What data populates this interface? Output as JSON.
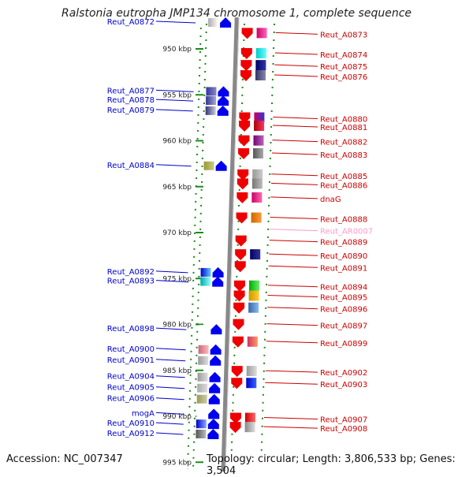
{
  "title": "Ralstonia eutropha JMP134 chromosome 1, complete sequence",
  "footer": {
    "accession": "Accession: NC_007347",
    "summary": "Topology: circular; Length: 3,806,533 bp; Genes: 3,504"
  },
  "colors": {
    "left_label": "#0000cc",
    "right_label": "#cc0000",
    "rna_label": "#ff99cc",
    "axis": "#888888",
    "tick_dots": "#1a8a1a",
    "left_gene": "#0000ee",
    "right_gene": "#ee0000"
  },
  "scale_labels": [
    {
      "text": "950 kbp",
      "kbp": 950
    },
    {
      "text": "955 kbp",
      "kbp": 955
    },
    {
      "text": "960 kbp",
      "kbp": 960
    },
    {
      "text": "965 kbp",
      "kbp": 965
    },
    {
      "text": "970 kbp",
      "kbp": 970
    },
    {
      "text": "975 kbp",
      "kbp": 975
    },
    {
      "text": "980 kbp",
      "kbp": 980
    },
    {
      "text": "985 kbp",
      "kbp": 985
    },
    {
      "text": "990 kbp",
      "kbp": 990
    },
    {
      "text": "995 kbp",
      "kbp": 995
    }
  ],
  "left_genes": [
    {
      "label": "Reut_A0872",
      "kbp": 947.0,
      "swatch": [
        "#aaaaaa",
        "#ffffff"
      ]
    },
    {
      "label": "Reut_A0877",
      "kbp": 954.5,
      "swatch": [
        "#333399",
        "#8888cc"
      ]
    },
    {
      "label": "Reut_A0878",
      "kbp": 955.5,
      "swatch": [
        "#333399",
        "#aaaacc"
      ]
    },
    {
      "label": "Reut_A0879",
      "kbp": 956.6,
      "swatch": [
        "#333377",
        "#ccccdd"
      ]
    },
    {
      "label": "Reut_A0884",
      "kbp": 962.6,
      "swatch": [
        "#999933",
        "#cccc88"
      ]
    },
    {
      "label": "Reut_A0892",
      "kbp": 974.2,
      "swatch": [
        "#0000cc",
        "#66ccff"
      ]
    },
    {
      "label": "Reut_A0893",
      "kbp": 975.2,
      "swatch": [
        "#00aaaa",
        "#99ffff"
      ]
    },
    {
      "label": "Reut_A0898",
      "kbp": 980.4,
      "swatch": [
        "#ffffff",
        "#ffffff"
      ]
    },
    {
      "label": "Reut_A0900",
      "kbp": 982.6,
      "swatch": [
        "#cc6677",
        "#ffbbbb"
      ]
    },
    {
      "label": "Reut_A0901",
      "kbp": 983.8,
      "swatch": [
        "#999999",
        "#dddddd"
      ]
    },
    {
      "label": "Reut_A0904",
      "kbp": 985.6,
      "swatch": [
        "#999999",
        "#dddddd"
      ]
    },
    {
      "label": "Reut_A0905",
      "kbp": 986.8,
      "swatch": [
        "#aaaaaa",
        "#dddddd"
      ]
    },
    {
      "label": "Reut_A0906",
      "kbp": 988.0,
      "swatch": [
        "#999955",
        "#ccccaa"
      ]
    },
    {
      "label": "mogA",
      "kbp": 989.6,
      "swatch": [
        "#ffffff",
        "#ffffff"
      ]
    },
    {
      "label": "Reut_A0910",
      "kbp": 990.7,
      "swatch": [
        "#0000cc",
        "#88aaff"
      ]
    },
    {
      "label": "Reut_A0912",
      "kbp": 991.8,
      "swatch": [
        "#555555",
        "#bbbbbb"
      ]
    }
  ],
  "right_genes": [
    {
      "label": "Reut_A0873",
      "kbp": 948.4,
      "swatch": [
        "#cc0066",
        "#ff66bb"
      ],
      "rna": false
    },
    {
      "label": "Reut_A0874",
      "kbp": 950.6,
      "swatch": [
        "#00cccc",
        "#66ffff"
      ],
      "rna": false
    },
    {
      "label": "Reut_A0875",
      "kbp": 951.9,
      "swatch": [
        "#000066",
        "#3333aa"
      ],
      "rna": false
    },
    {
      "label": "Reut_A0876",
      "kbp": 953.0,
      "swatch": [
        "#333366",
        "#8888aa"
      ],
      "rna": false
    },
    {
      "label": "Reut_A0880",
      "kbp": 957.6,
      "swatch": [
        "#cc0066",
        "#3333cc"
      ],
      "rna": false
    },
    {
      "label": "Reut_A0881",
      "kbp": 958.5,
      "swatch": [
        "#aa0000",
        "#ff3366"
      ],
      "rna": false
    },
    {
      "label": "Reut_A0882",
      "kbp": 960.1,
      "swatch": [
        "#770077",
        "#bb66bb"
      ],
      "rna": false
    },
    {
      "label": "Reut_A0883",
      "kbp": 961.5,
      "swatch": [
        "#555555",
        "#aaaaaa"
      ],
      "rna": false
    },
    {
      "label": "Reut_A0885",
      "kbp": 963.8,
      "swatch": [
        "#999999",
        "#cccccc"
      ],
      "rna": false
    },
    {
      "label": "Reut_A0886",
      "kbp": 964.8,
      "swatch": [
        "#777777",
        "#bbbbbb"
      ],
      "rna": false
    },
    {
      "label": "dnaG",
      "kbp": 966.3,
      "swatch": [
        "#cc0066",
        "#ff66aa"
      ],
      "rna": false
    },
    {
      "label": "Reut_A0888",
      "kbp": 968.5,
      "swatch": [
        "#cc6600",
        "#ff9933"
      ],
      "rna": false
    },
    {
      "label": "Reut_AR0007",
      "kbp": 969.8,
      "swatch": [
        "#ffffff",
        "#ffffff"
      ],
      "rna": true
    },
    {
      "label": "Reut_A0889",
      "kbp": 971.0,
      "swatch": [
        "#ffffff",
        "#ffffff"
      ],
      "rna": false
    },
    {
      "label": "Reut_A0890",
      "kbp": 972.5,
      "swatch": [
        "#000066",
        "#333399"
      ],
      "rna": false
    },
    {
      "label": "Reut_A0891",
      "kbp": 973.8,
      "swatch": [
        "#ffffff",
        "#ffffff"
      ],
      "rna": false
    },
    {
      "label": "Reut_A0894",
      "kbp": 975.9,
      "swatch": [
        "#00aa00",
        "#66ee66"
      ],
      "rna": false
    },
    {
      "label": "Reut_A0895",
      "kbp": 977.0,
      "swatch": [
        "#cc9900",
        "#ffcc33"
      ],
      "rna": false
    },
    {
      "label": "Reut_A0896",
      "kbp": 978.3,
      "swatch": [
        "#3366aa",
        "#88bbee"
      ],
      "rna": false
    },
    {
      "label": "Reut_A0897",
      "kbp": 980.1,
      "swatch": [
        "#ffffff",
        "#ffffff"
      ],
      "rna": false
    },
    {
      "label": "Reut_A0899",
      "kbp": 982.0,
      "swatch": [
        "#cc3366",
        "#ff9966"
      ],
      "rna": false
    },
    {
      "label": "Reut_A0902",
      "kbp": 985.2,
      "swatch": [
        "#999999",
        "#dddddd"
      ],
      "rna": false
    },
    {
      "label": "Reut_A0903",
      "kbp": 986.5,
      "swatch": [
        "#0000cc",
        "#3366ff"
      ],
      "rna": false
    },
    {
      "label": "Reut_A0907",
      "kbp": 990.3,
      "swatch": [
        "#cc0000",
        "#ff6666"
      ],
      "rna": false
    },
    {
      "label": "Reut_A0908",
      "kbp": 991.3,
      "swatch": [
        "#888888",
        "#dddddd"
      ],
      "rna": false
    }
  ]
}
